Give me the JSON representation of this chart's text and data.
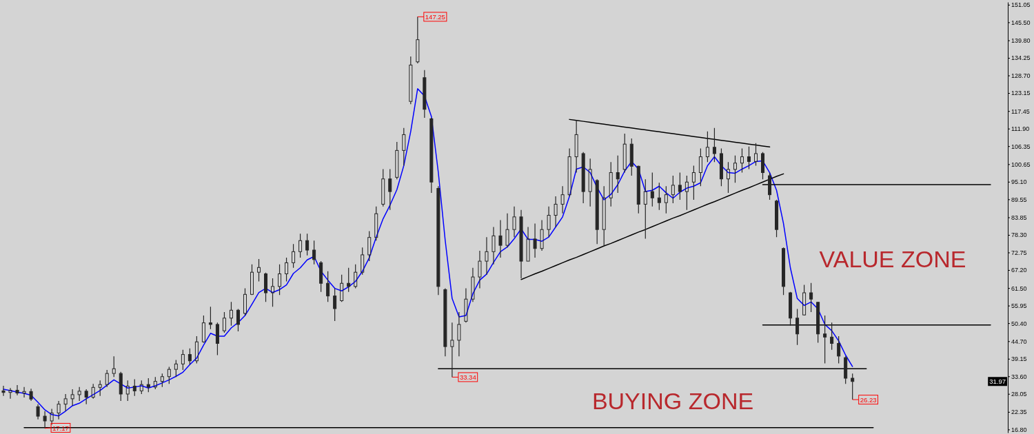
{
  "chart_data": {
    "type": "candlestick",
    "color": "#262626",
    "categories": [
      null,
      null,
      null,
      null,
      null,
      null,
      null,
      null,
      null,
      null,
      null,
      null,
      null,
      null,
      null,
      null,
      null,
      null,
      null,
      null,
      null,
      null,
      null,
      null,
      null,
      null,
      null,
      null,
      null,
      null,
      null,
      null,
      null,
      null,
      null,
      null,
      null,
      null,
      null,
      null,
      null,
      null,
      null,
      null,
      null,
      null,
      null,
      null,
      null,
      null,
      null,
      null,
      null,
      null,
      null,
      null,
      null,
      null,
      null,
      null,
      null,
      null,
      null,
      null,
      null,
      null,
      null,
      null,
      null,
      null,
      null,
      null,
      null,
      null,
      null,
      null,
      null,
      null,
      null,
      null,
      null,
      null,
      null,
      null,
      null,
      null,
      null,
      null,
      null,
      null,
      null,
      null,
      null,
      null,
      null,
      null,
      null,
      null,
      null,
      null,
      null,
      null,
      null,
      null,
      null,
      null,
      null,
      null,
      null,
      null,
      null,
      null,
      null,
      null,
      null,
      null,
      null,
      null,
      null,
      null,
      null,
      null,
      null,
      null,
      null,
      null,
      null,
      null,
      null,
      null,
      null,
      null,
      null,
      null,
      null,
      null,
      null,
      null,
      null,
      null,
      null,
      null,
      null,
      null,
      null,
      null
    ],
    "ohlc": [
      [
        29.0,
        30.6,
        27.4,
        28.5
      ],
      [
        28.5,
        29.9,
        26.5,
        29.2
      ],
      [
        29.2,
        30.8,
        27.6,
        28.3
      ],
      [
        28.3,
        30.2,
        26.9,
        28.8
      ],
      [
        28.8,
        29.7,
        25.8,
        26.4
      ],
      [
        24.0,
        24.8,
        20.0,
        21.0
      ],
      [
        21.0,
        22.6,
        17.17,
        19.5
      ],
      [
        19.5,
        23.3,
        18.3,
        22.0
      ],
      [
        22.0,
        25.8,
        20.0,
        24.8
      ],
      [
        24.8,
        28.0,
        22.6,
        26.5
      ],
      [
        26.5,
        29.5,
        24.3,
        27.8
      ],
      [
        27.8,
        30.2,
        25.8,
        28.9
      ],
      [
        28.9,
        29.5,
        24.8,
        27.0
      ],
      [
        27.0,
        31.2,
        26.5,
        30.1
      ],
      [
        30.1,
        32.3,
        27.4,
        31.0
      ],
      [
        31.0,
        35.6,
        30.2,
        34.5
      ],
      [
        34.5,
        39.9,
        33.4,
        36.0
      ],
      [
        34.5,
        35.0,
        25.8,
        28.0
      ],
      [
        28.0,
        32.3,
        25.8,
        30.5
      ],
      [
        30.5,
        32.7,
        27.4,
        29.0
      ],
      [
        29.0,
        32.3,
        28.0,
        31.0
      ],
      [
        31.0,
        33.0,
        28.6,
        30.2
      ],
      [
        30.2,
        33.4,
        29.5,
        32.0
      ],
      [
        32.0,
        34.5,
        30.2,
        33.5
      ],
      [
        33.5,
        36.6,
        31.2,
        35.8
      ],
      [
        35.8,
        38.8,
        33.4,
        37.5
      ],
      [
        37.5,
        42.0,
        35.6,
        40.5
      ],
      [
        40.5,
        42.4,
        37.3,
        38.5
      ],
      [
        38.5,
        46.3,
        37.7,
        44.5
      ],
      [
        44.5,
        52.8,
        44.2,
        50.5
      ],
      [
        50.5,
        55.6,
        48.5,
        50.0
      ],
      [
        50.0,
        50.6,
        40.3,
        44.0
      ],
      [
        48.0,
        53.9,
        47.4,
        52.0
      ],
      [
        52.0,
        57.1,
        49.6,
        54.5
      ],
      [
        54.5,
        54.9,
        47.8,
        50.0
      ],
      [
        53.5,
        61.4,
        52.8,
        59.5
      ],
      [
        59.5,
        69.0,
        59.3,
        66.5
      ],
      [
        66.5,
        70.7,
        63.6,
        68.0
      ],
      [
        66.0,
        66.4,
        57.1,
        60.0
      ],
      [
        60.0,
        64.6,
        55.6,
        62.0
      ],
      [
        62.0,
        69.0,
        59.3,
        66.0
      ],
      [
        66.0,
        71.1,
        63.6,
        69.5
      ],
      [
        69.5,
        75.4,
        67.9,
        73.0
      ],
      [
        73.0,
        78.7,
        71.1,
        76.5
      ],
      [
        76.5,
        78.7,
        71.8,
        73.5
      ],
      [
        73.5,
        76.5,
        69.0,
        70.5
      ],
      [
        69.5,
        70.0,
        60.3,
        63.0
      ],
      [
        63.0,
        66.8,
        57.1,
        59.0
      ],
      [
        59.0,
        61.4,
        51.1,
        55.0
      ],
      [
        57.5,
        65.7,
        57.1,
        63.0
      ],
      [
        63.0,
        67.9,
        60.3,
        62.0
      ],
      [
        62.0,
        69.0,
        61.4,
        66.5
      ],
      [
        66.5,
        74.3,
        65.7,
        72.0
      ],
      [
        72.0,
        79.5,
        70.0,
        77.5
      ],
      [
        77.5,
        87.3,
        76.5,
        85.0
      ],
      [
        88.0,
        99.1,
        87.3,
        96.0
      ],
      [
        96.0,
        99.1,
        86.2,
        92.0
      ],
      [
        96.5,
        107.7,
        95.9,
        105.0
      ],
      [
        105.0,
        112.1,
        100.2,
        110.0
      ],
      [
        120.5,
        134.7,
        119.6,
        132.0
      ],
      [
        133.0,
        147.25,
        132.5,
        140.0
      ],
      [
        128.0,
        130.4,
        115.3,
        118.0
      ],
      [
        115.0,
        115.3,
        91.6,
        95.0
      ],
      [
        93.0,
        93.7,
        59.3,
        62.0
      ],
      [
        61.0,
        61.4,
        39.9,
        43.0
      ],
      [
        43.0,
        50.6,
        33.34,
        45.0
      ],
      [
        45.0,
        53.9,
        39.9,
        50.0
      ],
      [
        51.0,
        61.4,
        50.6,
        58.0
      ],
      [
        58.0,
        67.9,
        57.1,
        65.0
      ],
      [
        65.0,
        73.3,
        61.4,
        70.0
      ],
      [
        70.0,
        77.6,
        65.7,
        73.0
      ],
      [
        73.0,
        80.8,
        69.0,
        78.0
      ],
      [
        78.0,
        83.0,
        71.1,
        75.0
      ],
      [
        75.0,
        85.1,
        74.3,
        80.0
      ],
      [
        80.0,
        87.3,
        77.6,
        84.0
      ],
      [
        84.0,
        86.2,
        64.6,
        70.0
      ],
      [
        70.0,
        80.8,
        70.0,
        77.0
      ],
      [
        77.0,
        81.9,
        71.1,
        74.0
      ],
      [
        74.0,
        83.0,
        73.3,
        80.0
      ],
      [
        80.0,
        87.3,
        77.6,
        84.5
      ],
      [
        84.5,
        90.5,
        80.8,
        88.0
      ],
      [
        88.0,
        93.7,
        85.1,
        91.0
      ],
      [
        91.0,
        105.6,
        90.5,
        103.0
      ],
      [
        103.0,
        114.6,
        98.0,
        110.0
      ],
      [
        104.0,
        104.5,
        88.3,
        92.0
      ],
      [
        92.0,
        102.4,
        87.3,
        99.0
      ],
      [
        95.5,
        95.9,
        75.4,
        80.0
      ],
      [
        80.0,
        93.7,
        75.0,
        90.0
      ],
      [
        90.0,
        101.3,
        87.3,
        98.0
      ],
      [
        98.0,
        103.4,
        91.6,
        96.0
      ],
      [
        99.0,
        110.3,
        98.0,
        107.0
      ],
      [
        107.0,
        108.8,
        97.0,
        100.0
      ],
      [
        100.0,
        100.2,
        85.1,
        88.0
      ],
      [
        88.0,
        95.9,
        77.1,
        92.0
      ],
      [
        92.0,
        98.0,
        87.3,
        90.0
      ],
      [
        90.0,
        94.8,
        86.2,
        88.5
      ],
      [
        88.5,
        93.7,
        85.1,
        91.0
      ],
      [
        91.0,
        97.0,
        88.3,
        94.0
      ],
      [
        94.0,
        98.0,
        89.4,
        92.0
      ],
      [
        92.0,
        97.0,
        86.2,
        95.0
      ],
      [
        95.0,
        100.2,
        89.4,
        98.0
      ],
      [
        98.0,
        105.6,
        93.7,
        103.0
      ],
      [
        103.0,
        111.0,
        101.3,
        106.0
      ],
      [
        106.0,
        112.1,
        101.3,
        104.0
      ],
      [
        104.0,
        105.6,
        93.7,
        96.0
      ],
      [
        96.0,
        101.3,
        91.6,
        99.0
      ],
      [
        99.0,
        103.4,
        94.8,
        101.0
      ],
      [
        101.0,
        105.6,
        98.0,
        103.0
      ],
      [
        103.0,
        106.2,
        99.1,
        101.5
      ],
      [
        101.5,
        107.3,
        100.2,
        104.0
      ],
      [
        104.0,
        104.5,
        95.9,
        98.0
      ],
      [
        97.0,
        98.0,
        89.4,
        91.0
      ],
      [
        89.0,
        89.4,
        77.6,
        80.0
      ],
      [
        74.0,
        74.3,
        59.3,
        62.0
      ],
      [
        60.0,
        60.3,
        49.6,
        52.0
      ],
      [
        52.0,
        54.9,
        43.5,
        47.0
      ],
      [
        53.0,
        62.5,
        52.8,
        60.0
      ],
      [
        60.0,
        63.1,
        53.9,
        58.0
      ],
      [
        57.0,
        57.1,
        44.2,
        47.0
      ],
      [
        47.0,
        52.8,
        37.7,
        46.0
      ],
      [
        46.0,
        50.6,
        42.0,
        44.0
      ],
      [
        44.0,
        46.3,
        37.7,
        40.0
      ],
      [
        39.5,
        39.9,
        31.2,
        33.0
      ],
      [
        33.0,
        34.5,
        26.23,
        31.97
      ],
      null,
      null,
      null,
      null,
      null,
      null,
      null,
      null,
      null,
      null,
      null,
      null,
      null,
      null,
      null,
      null,
      null,
      null,
      null,
      null,
      null,
      null
    ],
    "series": [
      {
        "type": "line",
        "color": "#0000ff",
        "values": [
          29.5,
          29.1,
          28.6,
          28.2,
          27.6,
          25.4,
          23.0,
          21.5,
          21.1,
          22.6,
          24.3,
          25.1,
          26.5,
          27.8,
          29.1,
          30.8,
          32.5,
          31.2,
          29.9,
          30.2,
          30.6,
          29.9,
          30.6,
          31.5,
          32.5,
          33.6,
          34.9,
          37.3,
          39.4,
          43.5,
          47.2,
          46.3,
          46.3,
          48.9,
          50.6,
          52.8,
          56.4,
          60.1,
          61.4,
          60.1,
          61.0,
          62.5,
          66.1,
          67.9,
          70.4,
          71.5,
          66.8,
          64.0,
          61.4,
          60.6,
          61.9,
          63.6,
          66.8,
          71.1,
          77.6,
          83.4,
          87.7,
          92.6,
          100.2,
          111.0,
          124.5,
          122.2,
          115.7,
          98.0,
          76.5,
          58.2,
          52.4,
          52.8,
          59.7,
          64.0,
          65.9,
          69.6,
          73.0,
          74.5,
          77.1,
          80.2,
          76.9,
          76.9,
          76.3,
          77.6,
          80.8,
          84.0,
          90.5,
          99.1,
          99.8,
          98.0,
          93.3,
          89.4,
          91.1,
          94.2,
          98.5,
          101.5,
          99.1,
          92.0,
          92.4,
          93.7,
          91.6,
          89.9,
          91.8,
          93.1,
          93.7,
          94.8,
          100.2,
          103.0,
          100.2,
          98.0,
          97.8,
          99.1,
          100.2,
          101.5,
          101.7,
          98.0,
          92.4,
          81.9,
          67.9,
          58.2,
          56.0,
          57.1,
          54.9,
          50.0,
          48.0,
          44.8,
          40.3,
          36.7,
          null,
          null,
          null,
          null,
          null,
          null,
          null,
          null,
          null,
          null,
          null,
          null,
          null,
          null,
          null,
          null,
          null,
          null,
          null,
          null,
          null,
          null
        ]
      },
      {
        "type": "line",
        "color": "#000000",
        "values": [
          null,
          null,
          null,
          null,
          null,
          null,
          null,
          null,
          null,
          null,
          null,
          null,
          null,
          null,
          null,
          null,
          null,
          null,
          null,
          null,
          null,
          null,
          null,
          null,
          null,
          null,
          null,
          null,
          null,
          null,
          null,
          null,
          null,
          null,
          null,
          null,
          null,
          null,
          null,
          null,
          null,
          null,
          null,
          null,
          null,
          null,
          null,
          null,
          null,
          null,
          null,
          null,
          null,
          null,
          null,
          null,
          null,
          null,
          null,
          null,
          null,
          null,
          null,
          null,
          null,
          null,
          null,
          null,
          null,
          null,
          null,
          null,
          null,
          null,
          null,
          null,
          null,
          null,
          null,
          null,
          null,
          null,
          114.8,
          114.5,
          114.2,
          113.9,
          113.6,
          113.3,
          113.0,
          112.7,
          112.4,
          112.1,
          111.8,
          111.5,
          111.2,
          110.9,
          110.6,
          110.3,
          110.0,
          109.7,
          109.4,
          109.1,
          108.8,
          108.5,
          108.2,
          107.9,
          107.6,
          107.3,
          107.0,
          106.7,
          106.4,
          106.1,
          null,
          null,
          null,
          null,
          null,
          null,
          null,
          null,
          null,
          null,
          null,
          null,
          null,
          null,
          null,
          null,
          null,
          null,
          null,
          null,
          null,
          null,
          null,
          null,
          null,
          null,
          null,
          null,
          null,
          null,
          null,
          null,
          null,
          null
        ]
      },
      {
        "type": "line",
        "color": "#000000",
        "values": [
          null,
          null,
          null,
          null,
          null,
          null,
          null,
          null,
          null,
          null,
          null,
          null,
          null,
          null,
          null,
          null,
          null,
          null,
          null,
          null,
          null,
          null,
          null,
          null,
          null,
          null,
          null,
          null,
          null,
          null,
          null,
          null,
          null,
          null,
          null,
          null,
          null,
          null,
          null,
          null,
          null,
          null,
          null,
          null,
          null,
          null,
          null,
          null,
          null,
          null,
          null,
          null,
          null,
          null,
          null,
          null,
          null,
          null,
          null,
          null,
          null,
          null,
          null,
          null,
          null,
          null,
          null,
          null,
          null,
          null,
          null,
          null,
          null,
          null,
          null,
          64.2,
          65.1,
          66.0,
          66.8,
          67.7,
          68.6,
          69.5,
          70.4,
          71.2,
          72.1,
          73.0,
          73.9,
          74.8,
          75.6,
          76.5,
          77.4,
          78.3,
          79.2,
          80.0,
          80.9,
          81.8,
          82.7,
          83.6,
          84.4,
          85.3,
          86.2,
          87.1,
          88.0,
          88.8,
          89.7,
          90.6,
          91.5,
          92.4,
          93.2,
          94.1,
          95.0,
          95.9,
          96.8,
          97.6,
          null,
          null,
          null,
          null,
          null,
          null,
          null,
          null,
          null,
          null,
          null,
          null,
          null,
          null,
          null,
          null,
          null,
          null,
          null,
          null,
          null,
          null,
          null,
          null,
          null,
          null,
          null,
          null,
          null,
          null,
          null,
          null
        ]
      },
      {
        "type": "line",
        "color": "#000000",
        "values": [
          null,
          null,
          null,
          null,
          null,
          null,
          null,
          null,
          null,
          null,
          null,
          null,
          null,
          null,
          null,
          null,
          null,
          null,
          null,
          null,
          null,
          null,
          null,
          null,
          null,
          null,
          null,
          null,
          null,
          null,
          null,
          null,
          null,
          null,
          null,
          null,
          null,
          null,
          null,
          null,
          null,
          null,
          null,
          null,
          null,
          null,
          null,
          null,
          null,
          null,
          null,
          null,
          null,
          null,
          null,
          null,
          null,
          null,
          null,
          null,
          null,
          null,
          null,
          null,
          null,
          null,
          null,
          null,
          null,
          null,
          null,
          null,
          null,
          null,
          null,
          null,
          null,
          null,
          null,
          null,
          null,
          null,
          null,
          null,
          null,
          null,
          null,
          null,
          null,
          null,
          null,
          null,
          null,
          null,
          null,
          null,
          null,
          null,
          null,
          null,
          null,
          null,
          null,
          null,
          null,
          null,
          null,
          null,
          null,
          null,
          94.2,
          94.2,
          94.2,
          94.2,
          94.2,
          94.2,
          94.2,
          94.2,
          94.2,
          94.2,
          94.2,
          94.2,
          94.2,
          94.2,
          94.2,
          94.2,
          94.2,
          94.2,
          94.2,
          94.2,
          94.2,
          94.2,
          94.2,
          94.2,
          94.2,
          94.2,
          94.2,
          94.2,
          94.2,
          94.2,
          94.2,
          94.2,
          94.2,
          94.2,
          null,
          null
        ]
      },
      {
        "type": "line",
        "color": "#000000",
        "values": [
          null,
          null,
          null,
          null,
          null,
          null,
          null,
          null,
          null,
          null,
          null,
          null,
          null,
          null,
          null,
          null,
          null,
          null,
          null,
          null,
          null,
          null,
          null,
          null,
          null,
          null,
          null,
          null,
          null,
          null,
          null,
          null,
          null,
          null,
          null,
          null,
          null,
          null,
          null,
          null,
          null,
          null,
          null,
          null,
          null,
          null,
          null,
          null,
          null,
          null,
          null,
          null,
          null,
          null,
          null,
          null,
          null,
          null,
          null,
          null,
          null,
          null,
          null,
          null,
          null,
          null,
          null,
          null,
          null,
          null,
          null,
          null,
          null,
          null,
          null,
          null,
          null,
          null,
          null,
          null,
          null,
          null,
          null,
          null,
          null,
          null,
          null,
          null,
          null,
          null,
          null,
          null,
          null,
          null,
          null,
          null,
          null,
          null,
          null,
          null,
          null,
          null,
          null,
          null,
          null,
          null,
          null,
          null,
          null,
          null,
          49.8,
          49.8,
          49.8,
          49.8,
          49.8,
          49.8,
          49.8,
          49.8,
          49.8,
          49.8,
          49.8,
          49.8,
          49.8,
          49.8,
          49.8,
          49.8,
          49.8,
          49.8,
          49.8,
          49.8,
          49.8,
          49.8,
          49.8,
          49.8,
          49.8,
          49.8,
          49.8,
          49.8,
          49.8,
          49.8,
          49.8,
          49.8,
          49.8,
          49.8,
          null,
          null
        ]
      },
      {
        "type": "line",
        "color": "#000000",
        "values": [
          null,
          null,
          null,
          null,
          null,
          null,
          null,
          null,
          null,
          null,
          null,
          null,
          null,
          null,
          null,
          null,
          null,
          null,
          null,
          null,
          null,
          null,
          null,
          null,
          null,
          null,
          null,
          null,
          null,
          null,
          null,
          null,
          null,
          null,
          null,
          null,
          null,
          null,
          null,
          null,
          null,
          null,
          null,
          null,
          null,
          null,
          null,
          null,
          null,
          null,
          null,
          null,
          null,
          null,
          null,
          null,
          null,
          null,
          null,
          null,
          null,
          null,
          null,
          36.0,
          36.0,
          36.0,
          36.0,
          36.0,
          36.0,
          36.0,
          36.0,
          36.0,
          36.0,
          36.0,
          36.0,
          36.0,
          36.0,
          36.0,
          36.0,
          36.0,
          36.0,
          36.0,
          36.0,
          36.0,
          36.0,
          36.0,
          36.0,
          36.0,
          36.0,
          36.0,
          36.0,
          36.0,
          36.0,
          36.0,
          36.0,
          36.0,
          36.0,
          36.0,
          36.0,
          36.0,
          36.0,
          36.0,
          36.0,
          36.0,
          36.0,
          36.0,
          36.0,
          36.0,
          36.0,
          36.0,
          36.0,
          36.0,
          36.0,
          36.0,
          36.0,
          36.0,
          36.0,
          36.0,
          36.0,
          36.0,
          36.0,
          36.0,
          36.0,
          36.0,
          36.0,
          36.0,
          null,
          null,
          null,
          null,
          null,
          null,
          null,
          null,
          null,
          null,
          null,
          null,
          null,
          null,
          null,
          null,
          null,
          null,
          null,
          null
        ]
      },
      {
        "type": "line",
        "color": "#000000",
        "values": [
          null,
          null,
          null,
          17.4,
          17.4,
          17.4,
          17.4,
          17.4,
          17.4,
          17.4,
          17.4,
          17.4,
          17.4,
          17.4,
          17.4,
          17.4,
          17.4,
          17.4,
          17.4,
          17.4,
          17.4,
          17.4,
          17.4,
          17.4,
          17.4,
          17.4,
          17.4,
          17.4,
          17.4,
          17.4,
          17.4,
          17.4,
          17.4,
          17.4,
          17.4,
          17.4,
          17.4,
          17.4,
          17.4,
          17.4,
          17.4,
          17.4,
          17.4,
          17.4,
          17.4,
          17.4,
          17.4,
          17.4,
          17.4,
          17.4,
          17.4,
          17.4,
          17.4,
          17.4,
          17.4,
          17.4,
          17.4,
          17.4,
          17.4,
          17.4,
          17.4,
          17.4,
          17.4,
          17.4,
          17.4,
          17.4,
          17.4,
          17.4,
          17.4,
          17.4,
          17.4,
          17.4,
          17.4,
          17.4,
          17.4,
          17.4,
          17.4,
          17.4,
          17.4,
          17.4,
          17.4,
          17.4,
          17.4,
          17.4,
          17.4,
          17.4,
          17.4,
          17.4,
          17.4,
          17.4,
          17.4,
          17.4,
          17.4,
          17.4,
          17.4,
          17.4,
          17.4,
          17.4,
          17.4,
          17.4,
          17.4,
          17.4,
          17.4,
          17.4,
          17.4,
          17.4,
          17.4,
          17.4,
          17.4,
          17.4,
          17.4,
          17.4,
          17.4,
          17.4,
          17.4,
          17.4,
          17.4,
          17.4,
          17.4,
          17.4,
          17.4,
          17.4,
          17.4,
          17.4,
          17.4,
          17.4,
          17.4,
          null,
          null,
          null,
          null,
          null,
          null,
          null,
          null,
          null,
          null,
          null,
          null,
          null,
          null,
          null,
          null,
          null,
          null,
          null
        ]
      }
    ],
    "ylim": [
      15.8,
      151.9
    ],
    "yticks": [
      151.05,
      {
        "value": 145.5,
        "label": "145.50"
      },
      {
        "value": 139.8,
        "label": "139.80"
      },
      134.25,
      {
        "value": 128.7,
        "label": "128.70"
      },
      123.15,
      117.45,
      {
        "value": 111.9,
        "label": "111.90"
      },
      106.35,
      100.65,
      {
        "value": 95.1,
        "label": "95.10"
      },
      89.55,
      83.85,
      {
        "value": 78.3,
        "label": "78.30"
      },
      72.75,
      {
        "value": 67.2,
        "label": "67.20"
      },
      {
        "value": 61.5,
        "label": "61.50"
      },
      55.95,
      {
        "value": 50.4,
        "label": "50.40"
      },
      {
        "value": 44.7,
        "label": "44.70"
      },
      39.15,
      {
        "value": 33.6,
        "label": "33.60"
      },
      28.05,
      22.35,
      {
        "value": 16.8,
        "label": "16.80"
      }
    ],
    "tick_labels": "y",
    "annotations": [
      {
        "text": "147.25",
        "y": 147.25
      },
      {
        "text": "33.34",
        "y": 33.34
      },
      {
        "text": "17.17",
        "y": 17.17
      },
      {
        "text": "26.23",
        "y": 26.23
      },
      {
        "text": "31.97",
        "y": 31.97
      },
      "VALUE ZONE",
      "BUYING ZONE"
    ]
  }
}
